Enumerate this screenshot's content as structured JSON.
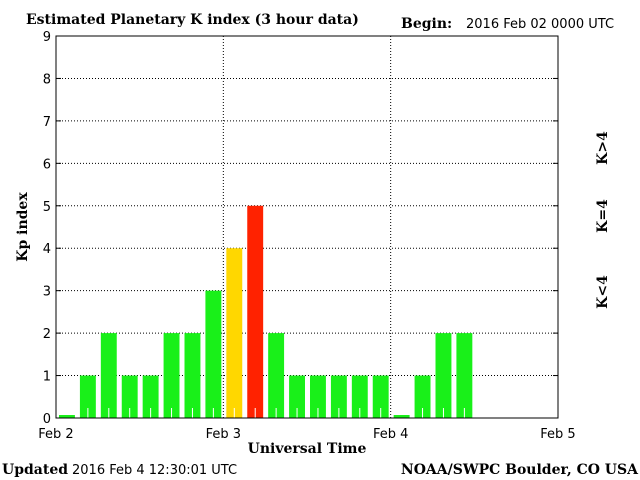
{
  "chart_data": {
    "type": "bar",
    "title": "Estimated Planetary K index (3 hour data)",
    "begin_label": "Begin:",
    "begin_value": "2016 Feb 02 0000 UTC",
    "xlabel": "Universal Time",
    "ylabel": "Kp index",
    "ylim": [
      0,
      9
    ],
    "yticks": [
      "0",
      "1",
      "2",
      "3",
      "4",
      "5",
      "6",
      "7",
      "8",
      "9"
    ],
    "xticks": [
      "Feb 2",
      "Feb 3",
      "Feb 4",
      "Feb 5"
    ],
    "interval_hours": 3,
    "slots": 24,
    "values": [
      0,
      1,
      2,
      1,
      1,
      2,
      2,
      3,
      4,
      5,
      2,
      1,
      1,
      1,
      1,
      1,
      0,
      1,
      2,
      2
    ],
    "colors": {
      "low": "#19f019",
      "equal": "#ffd700",
      "high": "#ff2200"
    },
    "legend": {
      "high": "K>4",
      "equal": "K=4",
      "low": "K<4"
    },
    "grid": true
  },
  "footer": {
    "updated_label": "Updated",
    "updated_value": "2016 Feb  4 12:30:01 UTC",
    "source": "NOAA/SWPC Boulder, CO USA"
  }
}
